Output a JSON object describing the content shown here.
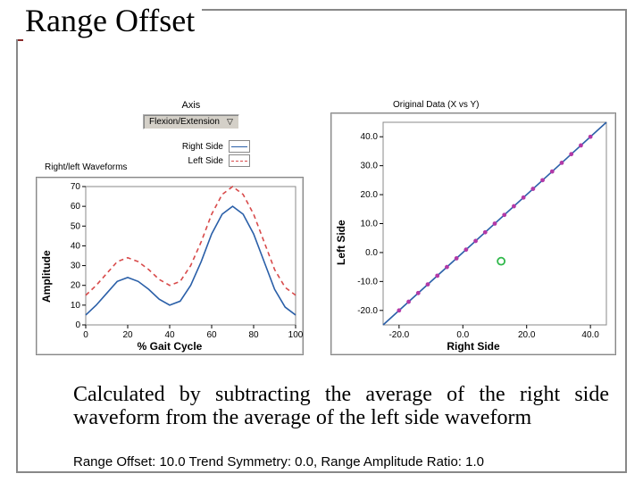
{
  "title": "Range Offset",
  "title_accent_color": "#8b2a2a",
  "frame_border_color": "#888888",
  "controls": {
    "axis_label": "Axis",
    "dropdown_value": "Flexion/Extension",
    "legend": [
      {
        "label": "Right Side",
        "color": "#2a5fa8",
        "dash": "solid"
      },
      {
        "label": "Left Side",
        "color": "#d84a4a",
        "dash": "dashed"
      }
    ]
  },
  "waveform_plot": {
    "panel_title": "Right/left Waveforms",
    "xlabel": "% Gait Cycle",
    "ylabel": "Amplitude",
    "xlim": [
      0,
      100
    ],
    "ylim": [
      0,
      70
    ],
    "xticks": [
      0,
      20,
      40,
      60,
      80,
      100
    ],
    "yticks": [
      0,
      10,
      20,
      30,
      40,
      50,
      60,
      70
    ],
    "background_color": "#ffffff",
    "grid": false,
    "series": [
      {
        "name": "right",
        "color": "#2a5fa8",
        "dash": "solid",
        "width": 1.6,
        "x": [
          0,
          5,
          10,
          15,
          20,
          25,
          30,
          35,
          40,
          45,
          50,
          55,
          60,
          65,
          70,
          75,
          80,
          85,
          90,
          95,
          100
        ],
        "y": [
          5,
          10,
          16,
          22,
          24,
          22,
          18,
          13,
          10,
          12,
          20,
          32,
          46,
          56,
          60,
          56,
          46,
          32,
          18,
          9,
          5
        ]
      },
      {
        "name": "left",
        "color": "#d84a4a",
        "dash": "dashed",
        "width": 1.6,
        "x": [
          0,
          5,
          10,
          15,
          20,
          25,
          30,
          35,
          40,
          45,
          50,
          55,
          60,
          65,
          70,
          75,
          80,
          85,
          90,
          95,
          100
        ],
        "y": [
          15,
          20,
          26,
          32,
          34,
          32,
          28,
          23,
          20,
          22,
          30,
          42,
          56,
          66,
          70,
          66,
          56,
          42,
          28,
          19,
          15
        ]
      }
    ]
  },
  "scatter_plot": {
    "panel_title": "Original Data (X vs Y)",
    "xlabel": "Right Side",
    "ylabel": "Left Side",
    "xlim": [
      -25,
      45
    ],
    "ylim": [
      -25,
      45
    ],
    "xticks": [
      -20.0,
      0.0,
      20.0,
      40.0
    ],
    "yticks": [
      -20.0,
      -10.0,
      0.0,
      10.0,
      20.0,
      30.0,
      40.0
    ],
    "background_color": "#ffffff",
    "grid": false,
    "line": {
      "color": "#2a5fa8",
      "width": 1.6,
      "slope": 1.0,
      "intercept": 0.0
    },
    "points": {
      "color": "#b23aa8",
      "radius": 2.4,
      "x": [
        -20,
        -17,
        -14,
        -11,
        -8,
        -5,
        -2,
        1,
        4,
        7,
        10,
        13,
        16,
        19,
        22,
        25,
        28,
        31,
        34,
        37,
        40
      ],
      "y": [
        -20,
        -17,
        -14,
        -11,
        -8,
        -5,
        -2,
        1,
        4,
        7,
        10,
        13,
        16,
        19,
        22,
        25,
        28,
        31,
        34,
        37,
        40
      ]
    },
    "marker": {
      "color": "#2fb84a",
      "shape": "circle-open",
      "radius": 4,
      "x": 12,
      "y": -3
    }
  },
  "description_text": "Calculated by subtracting the average of the right side waveform from the average of the left side waveform",
  "footer": "Range Offset: 10.0   Trend Symmetry: 0.0, Range Amplitude Ratio: 1.0",
  "fonts": {
    "title_family": "Times New Roman",
    "title_size_pt": 36,
    "body_family": "Times New Roman",
    "body_size_pt": 24,
    "label_size_pt": 11
  }
}
